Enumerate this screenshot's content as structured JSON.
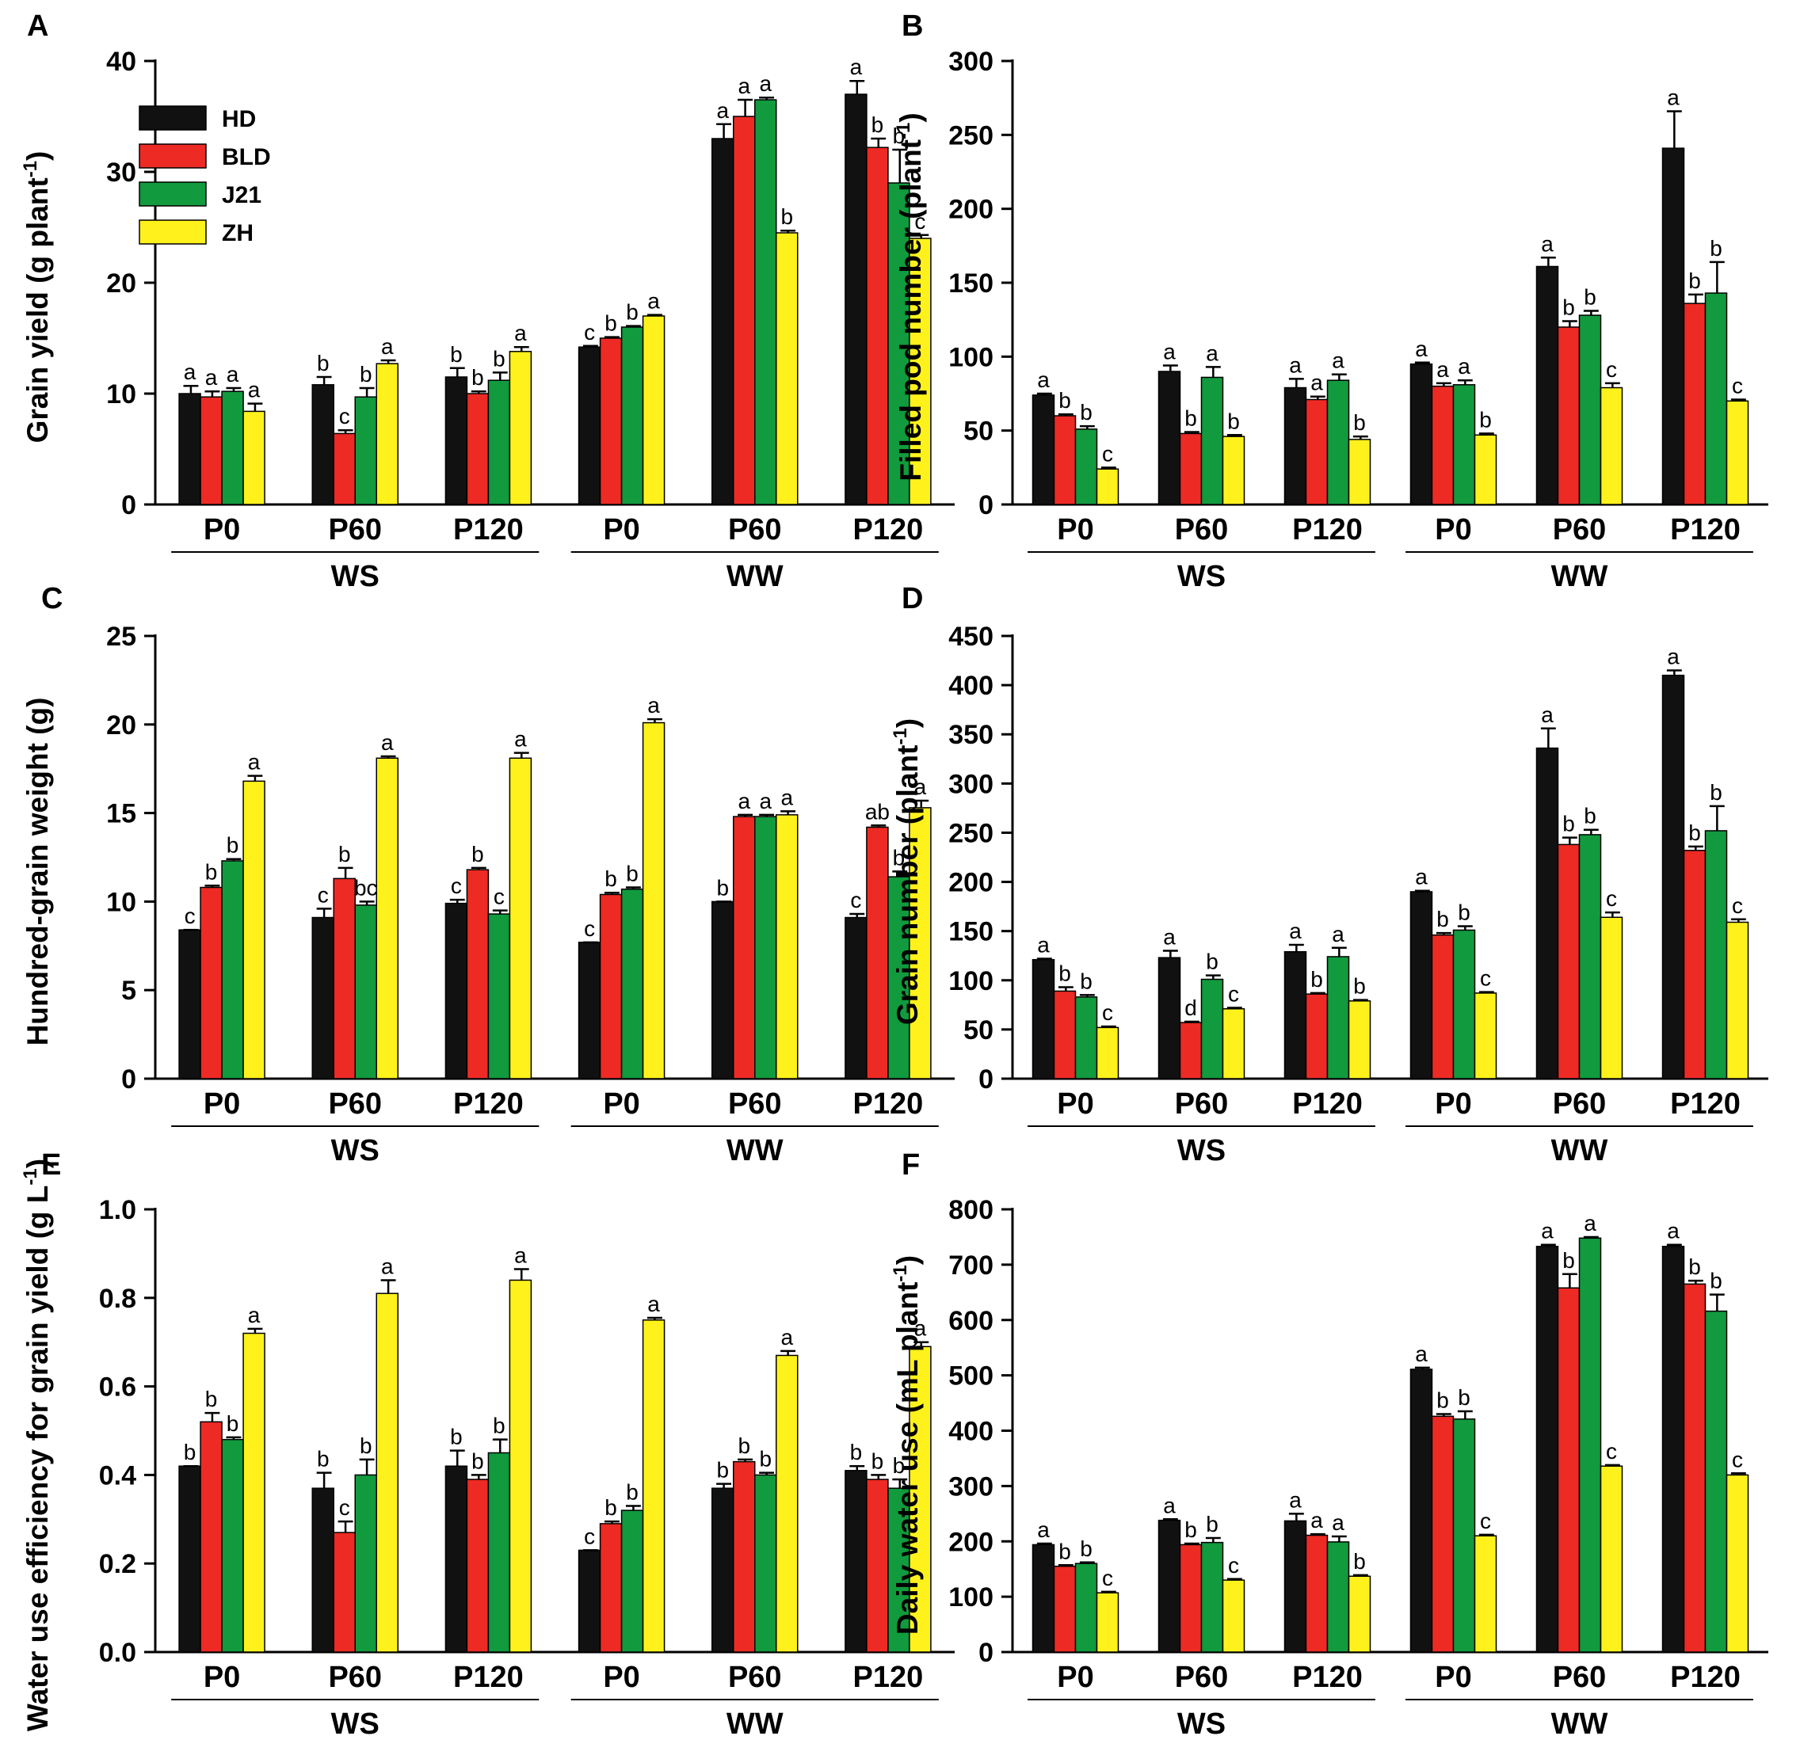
{
  "colors": {
    "HD": "#111111",
    "BLD": "#ee2a24",
    "J21": "#119a3e",
    "ZH": "#fff21c"
  },
  "legend": [
    "HD",
    "BLD",
    "J21",
    "ZH"
  ],
  "chart_data": [
    {
      "panel": "A",
      "type": "bar",
      "ylabel": "Grain yield (g plant",
      "ylabel_sup": "-1",
      "ylabel_tail": ")",
      "ylim": [
        0,
        40
      ],
      "yticks": [
        0,
        10,
        20,
        30,
        40
      ],
      "ytick_labels": [
        "0",
        "10",
        "20",
        "30",
        "40"
      ],
      "categories": [
        "P0",
        "P60",
        "P120",
        "P0",
        "P60",
        "P120"
      ],
      "groups": [
        {
          "name": "WS",
          "span": [
            0,
            2
          ]
        },
        {
          "name": "WW",
          "span": [
            3,
            5
          ]
        }
      ],
      "series": [
        {
          "name": "HD",
          "values": [
            10.0,
            10.8,
            11.5,
            14.2,
            33.0,
            37.0
          ],
          "errors": [
            0.7,
            0.7,
            0.8,
            0.1,
            1.3,
            1.2
          ],
          "letters": [
            "a",
            "b",
            "b",
            "c",
            "a",
            "a"
          ]
        },
        {
          "name": "BLD",
          "values": [
            9.7,
            6.4,
            10.0,
            15.0,
            35.0,
            32.2
          ],
          "errors": [
            0.5,
            0.3,
            0.2,
            0.1,
            1.5,
            0.8
          ],
          "letters": [
            "a",
            "c",
            "b",
            "b",
            "a",
            "b"
          ]
        },
        {
          "name": "J21",
          "values": [
            10.2,
            9.7,
            11.2,
            16.0,
            36.5,
            29.0
          ],
          "errors": [
            0.3,
            0.8,
            0.7,
            0.1,
            0.2,
            3.0
          ],
          "letters": [
            "a",
            "b",
            "b",
            "b",
            "a",
            "b"
          ]
        },
        {
          "name": "ZH",
          "values": [
            8.4,
            12.7,
            13.8,
            17.0,
            24.5,
            24.0
          ],
          "errors": [
            0.7,
            0.3,
            0.4,
            0.1,
            0.2,
            0.3
          ],
          "letters": [
            "a",
            "a",
            "a",
            "a",
            "b",
            "c"
          ]
        }
      ]
    },
    {
      "panel": "B",
      "type": "bar",
      "ylabel": "Filled pod number (plant",
      "ylabel_sup": "-1",
      "ylabel_tail": ")",
      "ylim": [
        0,
        300
      ],
      "yticks": [
        0,
        50,
        100,
        150,
        200,
        250,
        300
      ],
      "ytick_labels": [
        "0",
        "50",
        "100",
        "150",
        "200",
        "250",
        "300"
      ],
      "categories": [
        "P0",
        "P60",
        "P120",
        "P0",
        "P60",
        "P120"
      ],
      "groups": [
        {
          "name": "WS",
          "span": [
            0,
            2
          ]
        },
        {
          "name": "WW",
          "span": [
            3,
            5
          ]
        }
      ],
      "series": [
        {
          "name": "HD",
          "values": [
            74,
            90,
            79,
            95,
            161,
            241
          ],
          "errors": [
            1,
            4,
            6,
            1,
            6,
            25
          ],
          "letters": [
            "a",
            "a",
            "a",
            "a",
            "a",
            "a"
          ]
        },
        {
          "name": "BLD",
          "values": [
            60,
            48,
            71,
            80,
            120,
            136
          ],
          "errors": [
            1,
            1,
            2,
            2,
            4,
            6
          ],
          "letters": [
            "b",
            "b",
            "a",
            "a",
            "b",
            "b"
          ]
        },
        {
          "name": "J21",
          "values": [
            51,
            86,
            84,
            81,
            128,
            143
          ],
          "errors": [
            2,
            7,
            4,
            3,
            3,
            21
          ],
          "letters": [
            "b",
            "a",
            "a",
            "a",
            "b",
            "b"
          ]
        },
        {
          "name": "ZH",
          "values": [
            24,
            46,
            44,
            47,
            79,
            70
          ],
          "errors": [
            1,
            1,
            2,
            1,
            3,
            1
          ],
          "letters": [
            "c",
            "b",
            "b",
            "b",
            "c",
            "c"
          ]
        }
      ]
    },
    {
      "panel": "C",
      "type": "bar",
      "ylabel": "Hundred-grain weight (g)",
      "ylabel_sup": "",
      "ylabel_tail": "",
      "ylim": [
        0,
        25
      ],
      "yticks": [
        0,
        5,
        10,
        15,
        20,
        25
      ],
      "ytick_labels": [
        "0",
        "5",
        "10",
        "15",
        "20",
        "25"
      ],
      "categories": [
        "P0",
        "P60",
        "P120",
        "P0",
        "P60",
        "P120"
      ],
      "groups": [
        {
          "name": "WS",
          "span": [
            0,
            2
          ]
        },
        {
          "name": "WW",
          "span": [
            3,
            5
          ]
        }
      ],
      "series": [
        {
          "name": "HD",
          "values": [
            8.4,
            9.1,
            9.9,
            7.7,
            10.0,
            9.1
          ],
          "errors": [
            0.0,
            0.5,
            0.2,
            0.0,
            0.0,
            0.2
          ],
          "letters": [
            "c",
            "c",
            "c",
            "c",
            "b",
            "c"
          ]
        },
        {
          "name": "BLD",
          "values": [
            10.8,
            11.3,
            11.8,
            10.4,
            14.8,
            14.2
          ],
          "errors": [
            0.1,
            0.6,
            0.1,
            0.1,
            0.1,
            0.1
          ],
          "letters": [
            "b",
            "b",
            "b",
            "b",
            "a",
            "ab"
          ]
        },
        {
          "name": "J21",
          "values": [
            12.3,
            9.8,
            9.3,
            10.7,
            14.8,
            11.4
          ],
          "errors": [
            0.1,
            0.2,
            0.2,
            0.1,
            0.1,
            0.3
          ],
          "letters": [
            "b",
            "bc",
            "c",
            "b",
            "a",
            "b"
          ]
        },
        {
          "name": "ZH",
          "values": [
            16.8,
            18.1,
            18.1,
            20.1,
            14.9,
            15.3
          ],
          "errors": [
            0.3,
            0.1,
            0.3,
            0.2,
            0.2,
            0.4
          ],
          "letters": [
            "a",
            "a",
            "a",
            "a",
            "a",
            "a"
          ]
        }
      ]
    },
    {
      "panel": "D",
      "type": "bar",
      "ylabel": "Grain number (plant",
      "ylabel_sup": "-1",
      "ylabel_tail": ")",
      "ylim": [
        0,
        450
      ],
      "yticks": [
        0,
        50,
        100,
        150,
        200,
        250,
        300,
        350,
        400,
        450
      ],
      "ytick_labels": [
        "0",
        "50",
        "100",
        "150",
        "200",
        "250",
        "300",
        "350",
        "400",
        "450"
      ],
      "categories": [
        "P0",
        "P60",
        "P120",
        "P0",
        "P60",
        "P120"
      ],
      "groups": [
        {
          "name": "WS",
          "span": [
            0,
            2
          ]
        },
        {
          "name": "WW",
          "span": [
            3,
            5
          ]
        }
      ],
      "series": [
        {
          "name": "HD",
          "values": [
            121,
            123,
            129,
            190,
            336,
            410
          ],
          "errors": [
            1,
            7,
            7,
            1,
            20,
            5
          ],
          "letters": [
            "a",
            "a",
            "a",
            "a",
            "a",
            "a"
          ]
        },
        {
          "name": "BLD",
          "values": [
            89,
            57,
            86,
            146,
            238,
            232
          ],
          "errors": [
            4,
            1,
            1,
            2,
            7,
            4
          ],
          "letters": [
            "b",
            "d",
            "b",
            "b",
            "b",
            "b"
          ]
        },
        {
          "name": "J21",
          "values": [
            83,
            101,
            124,
            151,
            248,
            252
          ],
          "errors": [
            2,
            4,
            9,
            4,
            5,
            25
          ],
          "letters": [
            "b",
            "b",
            "a",
            "b",
            "b",
            "b"
          ]
        },
        {
          "name": "ZH",
          "values": [
            52,
            71,
            79,
            87,
            164,
            159
          ],
          "errors": [
            1,
            1,
            1,
            1,
            5,
            3
          ],
          "letters": [
            "c",
            "c",
            "b",
            "c",
            "c",
            "c"
          ]
        }
      ]
    },
    {
      "panel": "E",
      "type": "bar",
      "ylabel": "Water use efficiency for grain yield (g L",
      "ylabel_sup": "-1",
      "ylabel_tail": ")",
      "ylim": [
        0,
        1.0
      ],
      "yticks": [
        0,
        0.2,
        0.4,
        0.6,
        0.8,
        1.0
      ],
      "ytick_labels": [
        "0.0",
        "0.2",
        "0.4",
        "0.6",
        "0.8",
        "1.0"
      ],
      "categories": [
        "P0",
        "P60",
        "P120",
        "P0",
        "P60",
        "P120"
      ],
      "groups": [
        {
          "name": "WS",
          "span": [
            0,
            2
          ]
        },
        {
          "name": "WW",
          "span": [
            3,
            5
          ]
        }
      ],
      "series": [
        {
          "name": "HD",
          "values": [
            0.42,
            0.37,
            0.42,
            0.23,
            0.37,
            0.41
          ],
          "errors": [
            0.0,
            0.035,
            0.035,
            0.0,
            0.01,
            0.01
          ],
          "letters": [
            "b",
            "b",
            "b",
            "c",
            "b",
            "b"
          ]
        },
        {
          "name": "BLD",
          "values": [
            0.52,
            0.27,
            0.39,
            0.29,
            0.43,
            0.39
          ],
          "errors": [
            0.02,
            0.025,
            0.01,
            0.005,
            0.005,
            0.01
          ],
          "letters": [
            "b",
            "c",
            "b",
            "b",
            "b",
            "b"
          ]
        },
        {
          "name": "J21",
          "values": [
            0.48,
            0.4,
            0.45,
            0.32,
            0.4,
            0.37
          ],
          "errors": [
            0.005,
            0.035,
            0.03,
            0.01,
            0.005,
            0.02
          ],
          "letters": [
            "b",
            "b",
            "b",
            "b",
            "b",
            "b"
          ]
        },
        {
          "name": "ZH",
          "values": [
            0.72,
            0.81,
            0.84,
            0.75,
            0.67,
            0.69
          ],
          "errors": [
            0.01,
            0.03,
            0.025,
            0.005,
            0.01,
            0.01
          ],
          "letters": [
            "a",
            "a",
            "a",
            "a",
            "a",
            "a"
          ]
        }
      ]
    },
    {
      "panel": "F",
      "type": "bar",
      "ylabel": "Daily water use (mL plant",
      "ylabel_sup": "-1",
      "ylabel_tail": ")",
      "ylim": [
        0,
        800
      ],
      "yticks": [
        0,
        100,
        200,
        300,
        400,
        500,
        600,
        700,
        800
      ],
      "ytick_labels": [
        "0",
        "100",
        "200",
        "300",
        "400",
        "500",
        "600",
        "700",
        "800"
      ],
      "categories": [
        "P0",
        "P60",
        "P120",
        "P0",
        "P60",
        "P120"
      ],
      "groups": [
        {
          "name": "WS",
          "span": [
            0,
            2
          ]
        },
        {
          "name": "WW",
          "span": [
            3,
            5
          ]
        }
      ],
      "series": [
        {
          "name": "HD",
          "values": [
            194,
            238,
            237,
            511,
            733,
            733
          ],
          "errors": [
            2,
            2,
            13,
            3,
            3,
            3
          ],
          "letters": [
            "a",
            "a",
            "a",
            "a",
            "a",
            "a"
          ]
        },
        {
          "name": "BLD",
          "values": [
            155,
            194,
            211,
            426,
            658,
            665
          ],
          "errors": [
            2,
            2,
            2,
            4,
            25,
            6
          ],
          "letters": [
            "b",
            "b",
            "a",
            "b",
            "b",
            "b"
          ]
        },
        {
          "name": "J21",
          "values": [
            160,
            198,
            199,
            421,
            748,
            616
          ],
          "errors": [
            2,
            8,
            10,
            14,
            2,
            30
          ],
          "letters": [
            "b",
            "b",
            "a",
            "b",
            "a",
            "b"
          ]
        },
        {
          "name": "ZH",
          "values": [
            107,
            130,
            137,
            210,
            336,
            320
          ],
          "errors": [
            2,
            2,
            2,
            2,
            2,
            3
          ],
          "letters": [
            "c",
            "c",
            "b",
            "c",
            "c",
            "c"
          ]
        }
      ]
    }
  ]
}
